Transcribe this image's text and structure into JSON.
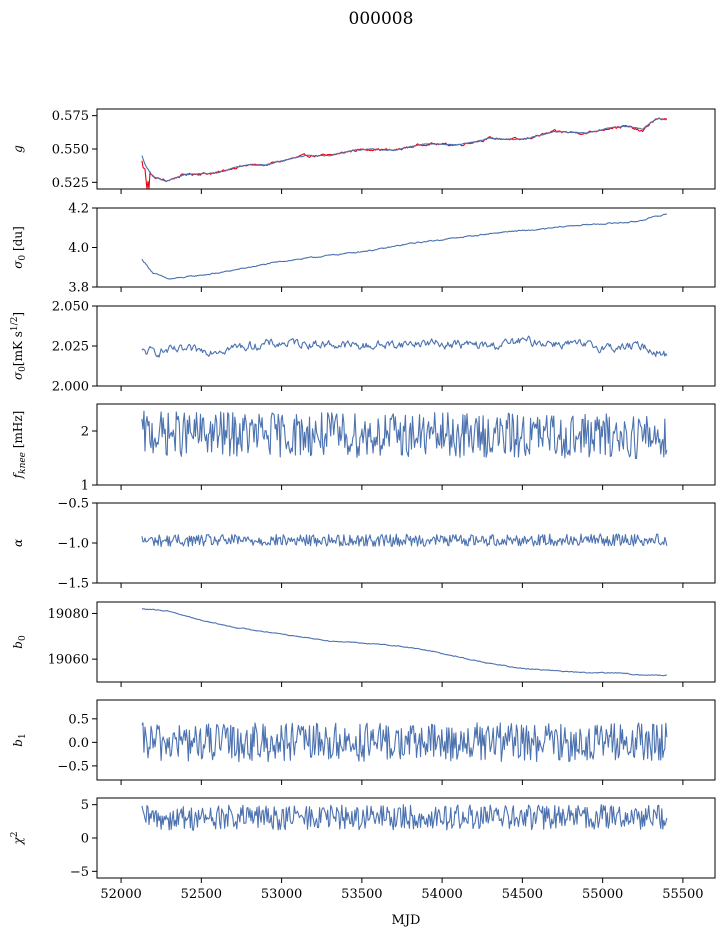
{
  "figure": {
    "title": "000008"
  },
  "chart_data": [
    {
      "id": "g",
      "type": "line",
      "ylabel": "g",
      "ylim": [
        0.52,
        0.58
      ],
      "yticks": [
        0.525,
        0.55,
        0.575
      ],
      "yticklabels": [
        "0.525",
        "0.550",
        "0.575"
      ],
      "x_range": [
        52130,
        55400
      ],
      "series": [
        {
          "color": "#e8000b",
          "width": 2.4,
          "noise": 0.0012,
          "x": [
            52130,
            52150,
            52200,
            52280,
            52400,
            52600,
            52700,
            52800,
            52900,
            53000,
            53150,
            53300,
            53450,
            53550,
            53700,
            53900,
            54100,
            54300,
            54500,
            54700,
            54900,
            55050,
            55150,
            55250,
            55300,
            55350,
            55400
          ],
          "y": [
            0.545,
            0.538,
            0.529,
            0.526,
            0.531,
            0.532,
            0.536,
            0.538,
            0.538,
            0.541,
            0.545,
            0.545,
            0.549,
            0.55,
            0.549,
            0.554,
            0.553,
            0.558,
            0.557,
            0.563,
            0.562,
            0.566,
            0.567,
            0.563,
            0.57,
            0.573,
            0.572
          ]
        },
        {
          "color": "#4c72b0",
          "width": 1.1,
          "noise": 0.0004,
          "x": [
            52130,
            52150,
            52200,
            52280,
            52400,
            52600,
            52700,
            52800,
            52900,
            53000,
            53150,
            53300,
            53450,
            53550,
            53700,
            53900,
            54100,
            54300,
            54500,
            54700,
            54900,
            55050,
            55150,
            55250,
            55300,
            55350,
            55400
          ],
          "y": [
            0.545,
            0.538,
            0.529,
            0.526,
            0.531,
            0.532,
            0.536,
            0.538,
            0.538,
            0.541,
            0.545,
            0.545,
            0.549,
            0.55,
            0.549,
            0.554,
            0.553,
            0.558,
            0.557,
            0.563,
            0.562,
            0.566,
            0.567,
            0.565,
            0.57,
            0.573,
            0.572
          ]
        }
      ]
    },
    {
      "id": "sigma0-du",
      "type": "line",
      "ylabel": "σ₀ [du]",
      "ylim": [
        3.8,
        4.2
      ],
      "yticks": [
        3.8,
        4.0,
        4.2
      ],
      "yticklabels": [
        "3.8",
        "4.0",
        "4.2"
      ],
      "x_range": [
        52130,
        55400
      ],
      "series": [
        {
          "color": "#4c72b0",
          "width": 1.1,
          "noise": 0.004,
          "x": [
            52130,
            52200,
            52300,
            52400,
            52600,
            52800,
            53000,
            53200,
            53400,
            53600,
            53800,
            54000,
            54200,
            54400,
            54600,
            54800,
            55000,
            55200,
            55300,
            55400
          ],
          "y": [
            3.94,
            3.87,
            3.84,
            3.85,
            3.87,
            3.9,
            3.93,
            3.95,
            3.97,
            3.99,
            4.02,
            4.04,
            4.06,
            4.08,
            4.09,
            4.11,
            4.12,
            4.13,
            4.15,
            4.17
          ]
        }
      ]
    },
    {
      "id": "sigma0-mks",
      "type": "line",
      "ylabel": "σ₀[mK s^1/2]",
      "ylim": [
        2.0,
        2.05
      ],
      "yticks": [
        2.0,
        2.025,
        2.05
      ],
      "yticklabels": [
        "2.000",
        "2.025",
        "2.050"
      ],
      "x_range": [
        52130,
        55400
      ],
      "series": [
        {
          "color": "#4c72b0",
          "width": 1.1,
          "noise": 0.0035,
          "x": [
            52130,
            52300,
            52500,
            52700,
            52900,
            53100,
            53300,
            53500,
            53700,
            53900,
            54100,
            54300,
            54500,
            54700,
            54900,
            55100,
            55250,
            55350,
            55400
          ],
          "y": [
            2.021,
            2.022,
            2.022,
            2.024,
            2.026,
            2.027,
            2.026,
            2.025,
            2.026,
            2.027,
            2.026,
            2.025,
            2.028,
            2.027,
            2.025,
            2.024,
            2.025,
            2.021,
            2.019
          ]
        }
      ]
    },
    {
      "id": "fknee",
      "type": "line",
      "ylabel": "f_knee [mHz]",
      "ylim": [
        1.0,
        2.5
      ],
      "yticks": [
        1,
        2
      ],
      "yticklabels": [
        "1",
        "2"
      ],
      "x_range": [
        52130,
        55400
      ],
      "series": [
        {
          "color": "#4c72b0",
          "width": 1.1,
          "noise": 0.22,
          "x": [
            52130,
            55400
          ],
          "y": [
            1.95,
            1.9
          ]
        }
      ]
    },
    {
      "id": "alpha",
      "type": "line",
      "ylabel": "α",
      "ylim": [
        -1.5,
        -0.5
      ],
      "yticks": [
        -1.5,
        -1.0,
        -0.5
      ],
      "yticklabels": [
        "−1.5",
        "−1.0",
        "−0.5"
      ],
      "x_range": [
        52130,
        55400
      ],
      "series": [
        {
          "color": "#4c72b0",
          "width": 1.1,
          "noise": 0.04,
          "x": [
            52130,
            55400
          ],
          "y": [
            -0.97,
            -0.96
          ]
        }
      ]
    },
    {
      "id": "b0",
      "type": "line",
      "ylabel": "b₀",
      "ylim": [
        19050,
        19085
      ],
      "yticks": [
        19060,
        19080
      ],
      "yticklabels": [
        "19060",
        "19080"
      ],
      "x_range": [
        52130,
        55400
      ],
      "series": [
        {
          "color": "#4c72b0",
          "width": 1.1,
          "noise": 0.25,
          "x": [
            52130,
            52300,
            52500,
            52700,
            52900,
            53100,
            53300,
            53500,
            53700,
            53900,
            54100,
            54300,
            54500,
            54700,
            54900,
            55100,
            55250,
            55400
          ],
          "y": [
            19082,
            19081,
            19077,
            19074,
            19072,
            19070,
            19068,
            19067,
            19066,
            19064,
            19061,
            19058,
            19056,
            19055,
            19054,
            19054,
            19053,
            19053
          ]
        }
      ]
    },
    {
      "id": "b1",
      "type": "line",
      "ylabel": "b₁",
      "ylim": [
        -0.8,
        0.9
      ],
      "yticks": [
        -0.5,
        0.0,
        0.5
      ],
      "yticklabels": [
        "−0.5",
        "0.0",
        "0.5"
      ],
      "x_range": [
        52130,
        55400
      ],
      "series": [
        {
          "color": "#4c72b0",
          "width": 1.1,
          "noise": 0.22,
          "x": [
            52130,
            55400
          ],
          "y": [
            0.0,
            0.0
          ]
        }
      ]
    },
    {
      "id": "chi2",
      "type": "line",
      "ylabel": "χ²",
      "ylim": [
        -6,
        6
      ],
      "yticks": [
        -5,
        0,
        5
      ],
      "yticklabels": [
        "−5",
        "0",
        "5"
      ],
      "x_range": [
        52130,
        55400
      ],
      "series": [
        {
          "color": "#4c72b0",
          "width": 1.1,
          "noise": 1.0,
          "x": [
            52130,
            55400
          ],
          "y": [
            3.0,
            3.2
          ]
        }
      ]
    }
  ],
  "x_axis": {
    "label": "MJD",
    "xlim": [
      51850,
      55700
    ],
    "ticks": [
      52000,
      52500,
      53000,
      53500,
      54000,
      54500,
      55000,
      55500
    ],
    "ticklabels": [
      "52000",
      "52500",
      "53000",
      "53500",
      "54000",
      "54500",
      "55000",
      "55500"
    ]
  }
}
